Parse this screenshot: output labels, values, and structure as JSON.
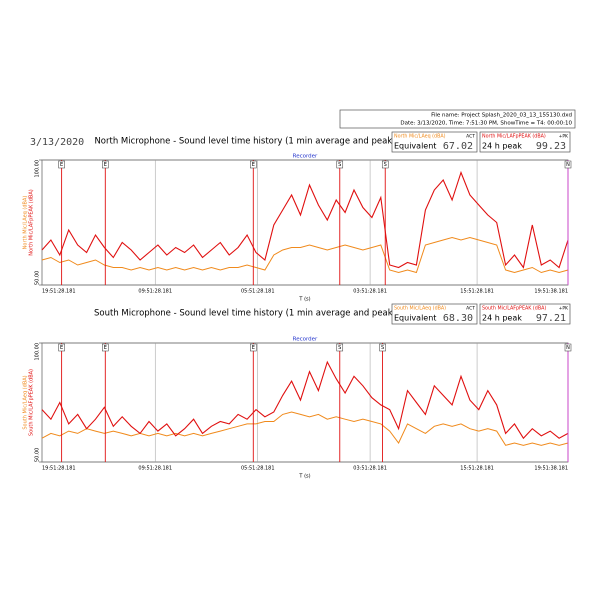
{
  "header": {
    "file_name": "File name: Project Splash_2020_03_13_155130.dxd",
    "date_line": "Date: 3/13/2020, Time: 7:51:30 PM, ShowTime = T4: 00:00:10",
    "date": "3/13/2020"
  },
  "chart_data": [
    {
      "type": "line",
      "title": "North Microphone - Sound level time history (1 min average and peak)",
      "subtitle": "Recorder",
      "x_label": "T (s)",
      "xlim": [
        0,
        59
      ],
      "ylim": [
        50,
        100
      ],
      "xticks": [
        {
          "value": 0,
          "label": "19:51:28.181"
        },
        {
          "value": 12.7,
          "label": "09:51:28.181"
        },
        {
          "value": 24.2,
          "label": "05:51:28.181"
        },
        {
          "value": 36.8,
          "label": "03:51:28.181"
        },
        {
          "value": 48.8,
          "label": "15:51:28.181"
        },
        {
          "value": 59,
          "label": "19:51:38.181"
        }
      ],
      "yticks": [
        {
          "value": 50,
          "label": "50.00"
        },
        {
          "value": 100,
          "label": "100.00"
        }
      ],
      "markers": [
        {
          "x": 2.2,
          "label": "E"
        },
        {
          "x": 7.1,
          "label": "E"
        },
        {
          "x": 23.7,
          "label": "E"
        },
        {
          "x": 33.4,
          "label": "S"
        },
        {
          "x": 38.5,
          "label": "S"
        },
        {
          "x": 59,
          "label": "N"
        }
      ],
      "series": [
        {
          "name": "North Mic/LAeq (dBA)",
          "color": "#f08a1c",
          "tag": "ACT",
          "stat_label": "Equivalent",
          "stat_value": "67.02",
          "values": [
            60,
            61,
            59,
            60,
            58,
            59,
            60,
            58,
            57,
            57,
            56,
            57,
            56,
            57,
            56,
            57,
            56,
            57,
            56,
            57,
            56,
            57,
            57,
            58,
            57,
            56,
            62,
            64,
            65,
            65,
            66,
            65,
            64,
            65,
            66,
            65,
            64,
            65,
            66,
            56,
            55,
            56,
            55,
            66,
            67,
            68,
            69,
            68,
            69,
            68,
            67,
            66,
            56,
            55,
            56,
            57,
            55,
            56,
            55,
            56
          ]
        },
        {
          "name": "North Mic/LAFpPEAK (dBA)",
          "color": "#e01010",
          "tag": "+PK",
          "stat_label": "24 h peak",
          "stat_value": "99.23",
          "values": [
            64,
            68,
            62,
            72,
            66,
            63,
            70,
            65,
            61,
            67,
            64,
            60,
            63,
            66,
            62,
            65,
            63,
            66,
            61,
            64,
            67,
            62,
            65,
            70,
            63,
            60,
            74,
            80,
            86,
            78,
            90,
            82,
            76,
            84,
            79,
            88,
            81,
            77,
            85,
            58,
            57,
            59,
            58,
            80,
            88,
            92,
            84,
            95,
            86,
            82,
            78,
            75,
            58,
            62,
            57,
            74,
            58,
            60,
            57,
            68
          ]
        }
      ]
    },
    {
      "type": "line",
      "title": "South Microphone - Sound level time history (1 min average and peak)",
      "subtitle": "Recorder",
      "x_label": "T (s)",
      "xlim": [
        0,
        59
      ],
      "ylim": [
        50,
        100
      ],
      "xticks": [
        {
          "value": 0,
          "label": "19:51:28.181"
        },
        {
          "value": 12.7,
          "label": "09:51:28.181"
        },
        {
          "value": 24.2,
          "label": "05:51:28.181"
        },
        {
          "value": 36.8,
          "label": "03:51:28.181"
        },
        {
          "value": 48.8,
          "label": "15:51:28.181"
        },
        {
          "value": 59,
          "label": "19:51:38.181"
        }
      ],
      "yticks": [
        {
          "value": 50,
          "label": "50.00"
        },
        {
          "value": 100,
          "label": "100.00"
        }
      ],
      "markers": [
        {
          "x": 2.2,
          "label": "E"
        },
        {
          "x": 7.1,
          "label": "E"
        },
        {
          "x": 23.7,
          "label": "E"
        },
        {
          "x": 33.4,
          "label": "S"
        },
        {
          "x": 38.2,
          "label": "S"
        },
        {
          "x": 59,
          "label": "N"
        }
      ],
      "series": [
        {
          "name": "South Mic/LAeq (dBA)",
          "color": "#f08a1c",
          "tag": "ACT",
          "stat_label": "Equivalent",
          "stat_value": "68.30",
          "values": [
            60,
            62,
            61,
            63,
            62,
            64,
            63,
            62,
            63,
            62,
            61,
            62,
            61,
            62,
            61,
            62,
            61,
            62,
            61,
            62,
            63,
            64,
            65,
            66,
            66,
            67,
            67,
            70,
            71,
            70,
            69,
            70,
            68,
            69,
            68,
            67,
            68,
            67,
            66,
            63,
            58,
            66,
            64,
            62,
            65,
            66,
            65,
            66,
            64,
            63,
            64,
            63,
            57,
            58,
            57,
            58,
            57,
            58,
            57,
            58
          ]
        },
        {
          "name": "South Mic/LAFpPEAK (dBA)",
          "color": "#e01010",
          "tag": "+PK",
          "stat_label": "24 h peak",
          "stat_value": "97.21",
          "values": [
            72,
            68,
            75,
            66,
            70,
            64,
            68,
            73,
            65,
            69,
            65,
            62,
            67,
            63,
            66,
            61,
            64,
            68,
            62,
            65,
            67,
            66,
            70,
            68,
            72,
            69,
            71,
            78,
            84,
            76,
            88,
            80,
            92,
            85,
            79,
            86,
            82,
            77,
            74,
            72,
            64,
            80,
            75,
            70,
            82,
            78,
            74,
            86,
            76,
            72,
            80,
            74,
            62,
            66,
            60,
            64,
            61,
            63,
            60,
            62
          ]
        }
      ]
    }
  ]
}
